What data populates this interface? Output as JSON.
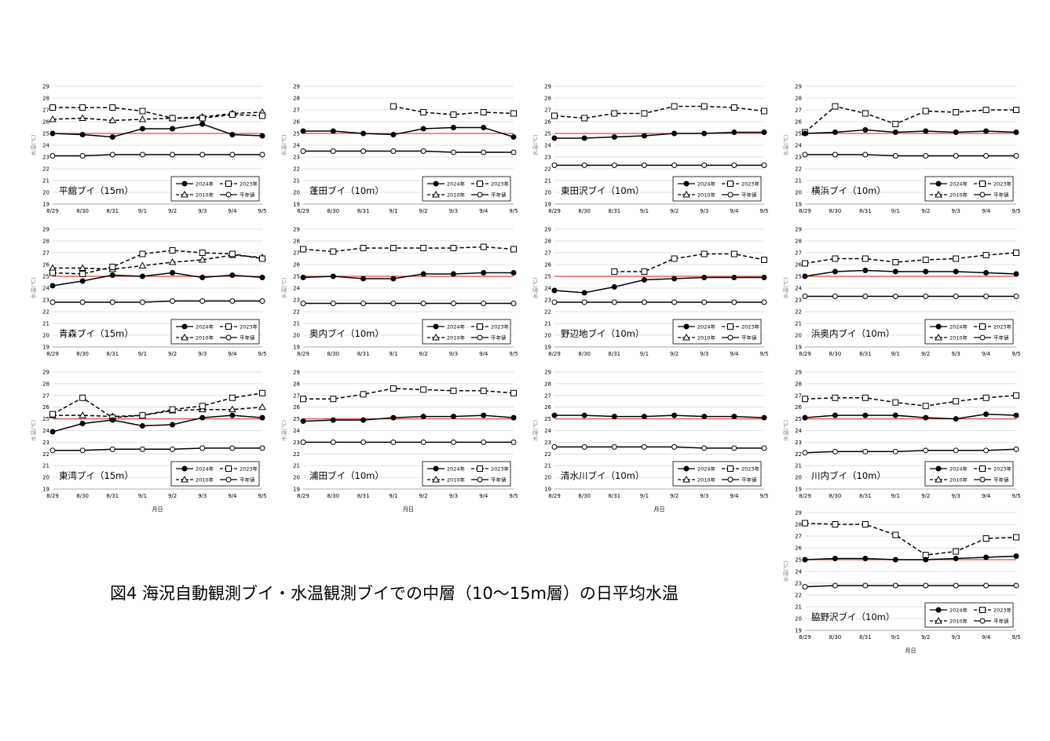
{
  "figure": {
    "caption": "図4 海況自動観測ブイ・水温観測ブイでの中層（10～15m層）の日平均水温"
  },
  "legend_labels": [
    "2024年",
    "2023年",
    "2010年",
    "平年値"
  ],
  "series_style": {
    "2024年": {
      "color": "#000000",
      "marker": "filled-circle",
      "dash": "solid"
    },
    "2023年": {
      "color": "#000000",
      "marker": "open-square",
      "dash": "dashed"
    },
    "2010年": {
      "color": "#000000",
      "marker": "open-triangle",
      "dash": "dashed"
    },
    "平年値": {
      "color": "#000000",
      "marker": "open-circle",
      "dash": "solid"
    },
    "reference_line_color": "#e8473b"
  },
  "chart_data": [
    {
      "type": "line",
      "title": "平舘ブイ（15m）",
      "xlabel": "",
      "ylabel": "水温(℃)",
      "ylim": [
        19,
        29
      ],
      "reference_line": 25,
      "grid": true,
      "legend_position": "bottom-right",
      "categories": [
        "8/29",
        "8/30",
        "8/31",
        "9/1",
        "9/2",
        "9/3",
        "9/4",
        "9/5"
      ],
      "series": [
        {
          "name": "2024年",
          "values": [
            25.0,
            24.9,
            24.7,
            25.4,
            25.4,
            25.8,
            24.9,
            24.8
          ]
        },
        {
          "name": "2023年",
          "values": [
            27.2,
            27.2,
            27.2,
            26.9,
            26.3,
            26.3,
            26.6,
            26.5
          ]
        },
        {
          "name": "2010年",
          "values": [
            26.2,
            26.3,
            26.1,
            26.2,
            26.3,
            26.4,
            26.7,
            26.8
          ]
        },
        {
          "name": "平年値",
          "values": [
            23.1,
            23.1,
            23.2,
            23.2,
            23.2,
            23.2,
            23.2,
            23.2
          ]
        }
      ]
    },
    {
      "type": "line",
      "title": "蓬田ブイ（10m）",
      "xlabel": "",
      "ylabel": "水温(℃)",
      "ylim": [
        19,
        29
      ],
      "reference_line": 25,
      "grid": true,
      "legend_position": "bottom-right",
      "categories": [
        "8/29",
        "8/30",
        "8/31",
        "9/1",
        "9/2",
        "9/3",
        "9/4",
        "9/5"
      ],
      "series": [
        {
          "name": "2024年",
          "values": [
            25.2,
            25.2,
            25.0,
            24.9,
            25.4,
            25.5,
            25.5,
            24.7
          ]
        },
        {
          "name": "2023年",
          "values": [
            null,
            null,
            null,
            27.3,
            26.8,
            26.6,
            26.8,
            26.7
          ]
        },
        {
          "name": "平年値",
          "values": [
            23.5,
            23.5,
            23.5,
            23.5,
            23.5,
            23.4,
            23.4,
            23.4
          ]
        }
      ]
    },
    {
      "type": "line",
      "title": "東田沢ブイ（10m）",
      "xlabel": "",
      "ylabel": "水温(℃)",
      "ylim": [
        19,
        29
      ],
      "reference_line": 25,
      "grid": true,
      "legend_position": "bottom-right",
      "categories": [
        "8/29",
        "8/30",
        "8/31",
        "9/1",
        "9/2",
        "9/3",
        "9/4",
        "9/5"
      ],
      "series": [
        {
          "name": "2024年",
          "values": [
            24.6,
            24.6,
            24.7,
            24.8,
            25.0,
            25.0,
            25.1,
            25.1
          ]
        },
        {
          "name": "2023年",
          "values": [
            26.5,
            26.3,
            26.7,
            26.7,
            27.3,
            27.3,
            27.2,
            26.9
          ]
        },
        {
          "name": "平年値",
          "values": [
            22.3,
            22.3,
            22.3,
            22.3,
            22.3,
            22.3,
            22.3,
            22.3
          ]
        }
      ]
    },
    {
      "type": "line",
      "title": "横浜ブイ（10m）",
      "xlabel": "",
      "ylabel": "水温(℃)",
      "ylim": [
        19,
        29
      ],
      "reference_line": 25,
      "grid": true,
      "legend_position": "bottom-right",
      "categories": [
        "8/29",
        "8/30",
        "8/31",
        "9/1",
        "9/2",
        "9/3",
        "9/4",
        "9/5"
      ],
      "series": [
        {
          "name": "2024年",
          "values": [
            25.0,
            25.1,
            25.3,
            25.1,
            25.2,
            25.1,
            25.2,
            25.1
          ]
        },
        {
          "name": "2023年",
          "values": [
            25.1,
            27.3,
            26.7,
            25.8,
            26.9,
            26.8,
            27.0,
            27.0
          ]
        },
        {
          "name": "平年値",
          "values": [
            23.2,
            23.2,
            23.2,
            23.1,
            23.1,
            23.1,
            23.1,
            23.1
          ]
        }
      ]
    },
    {
      "type": "line",
      "title": "青森ブイ（15m）",
      "xlabel": "",
      "ylabel": "水温(℃)",
      "ylim": [
        19,
        29
      ],
      "reference_line": 25,
      "grid": true,
      "legend_position": "bottom-right",
      "categories": [
        "8/29",
        "8/30",
        "8/31",
        "9/1",
        "9/2",
        "9/3",
        "9/4",
        "9/5"
      ],
      "series": [
        {
          "name": "2024年",
          "values": [
            24.2,
            24.6,
            25.1,
            25.0,
            25.3,
            24.9,
            25.1,
            24.9
          ]
        },
        {
          "name": "2023年",
          "values": [
            25.3,
            25.2,
            25.8,
            26.9,
            27.2,
            27.0,
            26.9,
            26.5
          ]
        },
        {
          "name": "2010年",
          "values": [
            25.7,
            25.7,
            25.6,
            25.9,
            26.2,
            26.4,
            26.8,
            26.6
          ]
        },
        {
          "name": "平年値",
          "values": [
            22.8,
            22.8,
            22.8,
            22.8,
            22.9,
            22.9,
            22.9,
            22.9
          ]
        }
      ]
    },
    {
      "type": "line",
      "title": "奥内ブイ（10m）",
      "xlabel": "",
      "ylabel": "水温(℃)",
      "ylim": [
        19,
        29
      ],
      "reference_line": 25,
      "grid": true,
      "legend_position": "bottom-right",
      "categories": [
        "8/29",
        "8/30",
        "8/31",
        "9/1",
        "9/2",
        "9/3",
        "9/4",
        "9/5"
      ],
      "series": [
        {
          "name": "2024年",
          "values": [
            24.9,
            25.0,
            24.8,
            24.8,
            25.2,
            25.2,
            25.3,
            25.3
          ]
        },
        {
          "name": "2023年",
          "values": [
            27.3,
            27.1,
            27.4,
            27.4,
            27.4,
            27.4,
            27.5,
            27.3
          ]
        },
        {
          "name": "平年値",
          "values": [
            22.7,
            22.7,
            22.7,
            22.7,
            22.7,
            22.7,
            22.7,
            22.7
          ]
        }
      ]
    },
    {
      "type": "line",
      "title": "野辺地ブイ（10m）",
      "xlabel": "",
      "ylabel": "水温(℃)",
      "ylim": [
        19,
        29
      ],
      "reference_line": 25,
      "grid": true,
      "legend_position": "bottom-right",
      "categories": [
        "8/29",
        "8/30",
        "8/31",
        "9/1",
        "9/2",
        "9/3",
        "9/4",
        "9/5"
      ],
      "series": [
        {
          "name": "2024年",
          "values": [
            23.8,
            23.6,
            24.1,
            24.7,
            24.8,
            24.9,
            24.9,
            24.9
          ]
        },
        {
          "name": "2023年",
          "values": [
            null,
            null,
            25.4,
            25.4,
            26.5,
            26.9,
            26.9,
            26.4
          ]
        },
        {
          "name": "平年値",
          "values": [
            22.8,
            22.8,
            22.8,
            22.8,
            22.8,
            22.8,
            22.8,
            22.8
          ]
        }
      ]
    },
    {
      "type": "line",
      "title": "浜奥内ブイ（10m）",
      "xlabel": "",
      "ylabel": "水温(℃)",
      "ylim": [
        19,
        29
      ],
      "reference_line": 25,
      "grid": true,
      "legend_position": "bottom-right",
      "categories": [
        "8/29",
        "8/30",
        "8/31",
        "9/1",
        "9/2",
        "9/3",
        "9/4",
        "9/5"
      ],
      "series": [
        {
          "name": "2024年",
          "values": [
            25.0,
            25.4,
            25.5,
            25.4,
            25.4,
            25.4,
            25.3,
            25.2
          ]
        },
        {
          "name": "2023年",
          "values": [
            26.1,
            26.5,
            26.5,
            26.2,
            26.4,
            26.5,
            26.8,
            27.0
          ]
        },
        {
          "name": "平年値",
          "values": [
            23.3,
            23.3,
            23.3,
            23.3,
            23.3,
            23.3,
            23.3,
            23.3
          ]
        }
      ]
    },
    {
      "type": "line",
      "title": "東湾ブイ（15m）",
      "xlabel": "月日",
      "ylabel": "水温(℃)",
      "ylim": [
        19,
        29
      ],
      "reference_line": 25,
      "grid": true,
      "legend_position": "bottom-right",
      "categories": [
        "8/29",
        "8/30",
        "8/31",
        "9/1",
        "9/2",
        "9/3",
        "9/4",
        "9/5"
      ],
      "series": [
        {
          "name": "2024年",
          "values": [
            23.9,
            24.6,
            24.9,
            24.4,
            24.5,
            25.1,
            25.3,
            25.1
          ]
        },
        {
          "name": "2023年",
          "values": [
            25.4,
            26.8,
            25.1,
            25.3,
            25.8,
            26.1,
            26.8,
            27.2
          ]
        },
        {
          "name": "2010年",
          "values": [
            25.3,
            25.3,
            25.2,
            25.3,
            25.7,
            25.8,
            25.8,
            26.0
          ]
        },
        {
          "name": "平年値",
          "values": [
            22.3,
            22.3,
            22.4,
            22.4,
            22.4,
            22.5,
            22.5,
            22.5
          ]
        }
      ]
    },
    {
      "type": "line",
      "title": "浦田ブイ（10m）",
      "xlabel": "月日",
      "ylabel": "水温(℃)",
      "ylim": [
        19,
        29
      ],
      "reference_line": 25,
      "grid": true,
      "legend_position": "bottom-right",
      "categories": [
        "8/29",
        "8/30",
        "8/31",
        "9/1",
        "9/2",
        "9/3",
        "9/4",
        "9/5"
      ],
      "series": [
        {
          "name": "2024年",
          "values": [
            24.8,
            24.9,
            24.9,
            25.1,
            25.2,
            25.2,
            25.3,
            25.1
          ]
        },
        {
          "name": "2023年",
          "values": [
            26.7,
            26.7,
            27.1,
            27.6,
            27.5,
            27.4,
            27.4,
            27.2
          ]
        },
        {
          "name": "平年値",
          "values": [
            23.0,
            23.0,
            23.0,
            23.0,
            23.0,
            23.0,
            23.0,
            23.0
          ]
        }
      ]
    },
    {
      "type": "line",
      "title": "清水川ブイ（10m）",
      "xlabel": "月日",
      "ylabel": "水温(℃)",
      "ylim": [
        19,
        29
      ],
      "reference_line": 25,
      "grid": true,
      "legend_position": "bottom-right",
      "categories": [
        "8/29",
        "8/30",
        "8/31",
        "9/1",
        "9/2",
        "9/3",
        "9/4",
        "9/5"
      ],
      "series": [
        {
          "name": "2024年",
          "values": [
            25.3,
            25.3,
            25.2,
            25.2,
            25.3,
            25.2,
            25.2,
            25.1
          ]
        },
        {
          "name": "平年値",
          "values": [
            22.6,
            22.6,
            22.6,
            22.6,
            22.6,
            22.5,
            22.5,
            22.5
          ]
        }
      ]
    },
    {
      "type": "line",
      "title": "川内ブイ（10m）",
      "xlabel": "",
      "ylabel": "水温(℃)",
      "ylim": [
        19,
        29
      ],
      "reference_line": 25,
      "grid": true,
      "legend_position": "bottom-right",
      "categories": [
        "8/29",
        "8/30",
        "8/31",
        "9/1",
        "9/2",
        "9/3",
        "9/4",
        "9/5"
      ],
      "series": [
        {
          "name": "2024年",
          "values": [
            25.1,
            25.3,
            25.3,
            25.3,
            25.1,
            25.0,
            25.4,
            25.3
          ]
        },
        {
          "name": "2023年",
          "values": [
            26.7,
            26.8,
            26.8,
            26.4,
            26.1,
            26.5,
            26.8,
            27.0
          ]
        },
        {
          "name": "平年値",
          "values": [
            22.1,
            22.2,
            22.2,
            22.2,
            22.3,
            22.3,
            22.3,
            22.4
          ]
        }
      ]
    },
    {
      "type": "line",
      "title": "脇野沢ブイ（10m）",
      "xlabel": "月日",
      "ylabel": "水温(℃)",
      "ylim": [
        19,
        29
      ],
      "reference_line": 25,
      "grid": true,
      "legend_position": "bottom-right",
      "categories": [
        "8/29",
        "8/30",
        "8/31",
        "9/1",
        "9/2",
        "9/3",
        "9/4",
        "9/5"
      ],
      "series": [
        {
          "name": "2024年",
          "values": [
            25.0,
            25.1,
            25.1,
            25.0,
            25.0,
            25.1,
            25.2,
            25.3
          ]
        },
        {
          "name": "2023年",
          "values": [
            28.1,
            28.0,
            28.0,
            27.1,
            25.4,
            25.7,
            26.8,
            26.9
          ]
        },
        {
          "name": "平年値",
          "values": [
            22.7,
            22.8,
            22.8,
            22.8,
            22.8,
            22.8,
            22.8,
            22.8
          ]
        }
      ]
    }
  ]
}
